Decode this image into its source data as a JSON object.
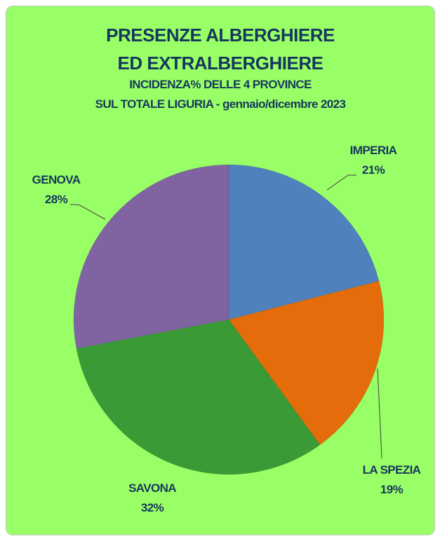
{
  "chart_data": {
    "type": "pie",
    "title": [
      "PRESENZE ALBERGHIERE",
      "ED EXTRALBERGHIERE"
    ],
    "subtitle": [
      "INCIDENZA% DELLE 4 PROVINCE",
      "SUL TOTALE LIGURIA - gennaio/dicembre 2023"
    ],
    "slices": [
      {
        "label": "IMPERIA",
        "value": 21,
        "value_label": "21%",
        "color": "#4f81bd"
      },
      {
        "label": "LA SPEZIA",
        "value": 19,
        "value_label": "19%",
        "color": "#e46c0a"
      },
      {
        "label": "SAVONA",
        "value": 32,
        "value_label": "32%",
        "color": "#3a9a35"
      },
      {
        "label": "GENOVA",
        "value": 28,
        "value_label": "28%",
        "color": "#8064a2"
      }
    ],
    "background": "#99ff66",
    "label_color": "#17375e",
    "legend": "none"
  }
}
